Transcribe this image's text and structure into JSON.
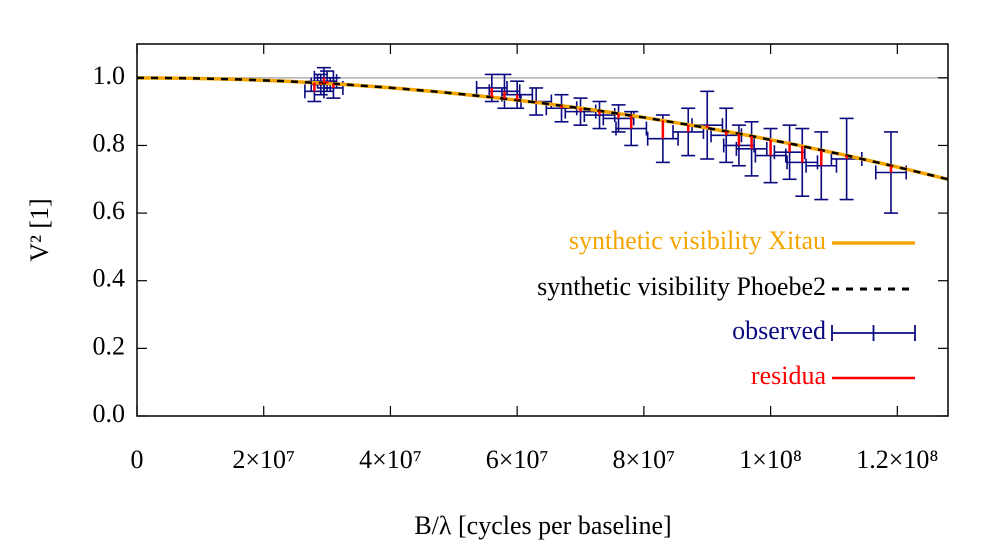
{
  "chart_data": {
    "type": "scatter",
    "xlabel": "B/λ [cycles per baseline]",
    "ylabel": "V² [1]",
    "xlim": [
      0,
      128000000
    ],
    "ylim": [
      0,
      1.1
    ],
    "xticks": [
      0,
      {
        "value": 20000000,
        "label": "2×10⁷"
      },
      {
        "value": 40000000,
        "label": "4×10⁷"
      },
      {
        "value": 60000000,
        "label": "6×10⁷"
      },
      {
        "value": 80000000,
        "label": "8×10⁷"
      },
      {
        "value": 100000000,
        "label": "1×10⁸"
      },
      {
        "value": 120000000,
        "label": "1.2×10⁸"
      }
    ],
    "yticks": [
      {
        "value": 0,
        "label": "0.0"
      },
      0.2,
      0.4,
      0.6,
      0.8,
      {
        "value": 1,
        "label": "1.0"
      }
    ],
    "hline": 1,
    "series": [
      {
        "name": "synthetic visibility Xitau",
        "type": "line",
        "color": "#f5a500",
        "dash": false,
        "x": [
          0,
          8000000,
          16000000,
          24000000,
          32000000,
          40000000,
          48000000,
          56000000,
          64000000,
          72000000,
          80000000,
          88000000,
          96000000,
          104000000,
          112000000,
          120000000,
          128000000
        ],
        "values": [
          1,
          0.9988,
          0.9953,
          0.9895,
          0.9813,
          0.9707,
          0.9578,
          0.9426,
          0.925,
          0.9051,
          0.8828,
          0.8582,
          0.8313,
          0.802,
          0.7703,
          0.7363,
          0.7
        ]
      },
      {
        "name": "synthetic visibility Phoebe2",
        "type": "line",
        "color": "#000000",
        "dash": true,
        "x": [
          0,
          8000000,
          16000000,
          24000000,
          32000000,
          40000000,
          48000000,
          56000000,
          64000000,
          72000000,
          80000000,
          88000000,
          96000000,
          104000000,
          112000000,
          120000000,
          128000000
        ],
        "values": [
          1,
          0.9988,
          0.9953,
          0.9895,
          0.9813,
          0.9707,
          0.9578,
          0.9426,
          0.925,
          0.9051,
          0.8828,
          0.8582,
          0.8313,
          0.802,
          0.7703,
          0.7363,
          0.7
        ]
      },
      {
        "name": "observed",
        "type": "errorbar",
        "color": "#0a0a80",
        "x": [
          28000000,
          29000000,
          29500000,
          30000000,
          31000000,
          56000000,
          58000000,
          60000000,
          63000000,
          67000000,
          70000000,
          73000000,
          76000000,
          78000000,
          83000000,
          87000000,
          90000000,
          93000000,
          95000000,
          97000000,
          100000000,
          103000000,
          105000000,
          108000000,
          112000000,
          119000000
        ],
        "values": [
          0.96,
          0.98,
          1.0,
          0.99,
          0.97,
          0.97,
          0.96,
          0.95,
          0.93,
          0.91,
          0.9,
          0.89,
          0.88,
          0.85,
          0.82,
          0.84,
          0.86,
          0.83,
          0.8,
          0.79,
          0.77,
          0.78,
          0.75,
          0.74,
          0.76,
          0.72
        ],
        "x_errors": [
          1500000,
          1500000,
          1500000,
          1500000,
          1500000,
          2400000,
          2400000,
          2400000,
          2400000,
          2400000,
          2400000,
          2400000,
          2400000,
          2400000,
          2400000,
          2400000,
          2400000,
          2400000,
          2400000,
          2400000,
          2400000,
          2400000,
          2400000,
          2400000,
          2400000,
          2400000
        ],
        "y_errors": [
          0.03,
          0.03,
          0.03,
          0.03,
          0.03,
          0.04,
          0.05,
          0.04,
          0.04,
          0.04,
          0.04,
          0.04,
          0.04,
          0.05,
          0.07,
          0.07,
          0.1,
          0.08,
          0.06,
          0.08,
          0.08,
          0.08,
          0.1,
          0.1,
          0.12,
          0.12
        ]
      },
      {
        "name": "residua",
        "type": "residual",
        "color": "#ff0000",
        "x": [
          28000000,
          29000000,
          29500000,
          30000000,
          31000000,
          56000000,
          58000000,
          60000000,
          63000000,
          67000000,
          70000000,
          73000000,
          76000000,
          78000000,
          83000000,
          87000000,
          90000000,
          93000000,
          95000000,
          97000000,
          100000000,
          103000000,
          105000000,
          108000000,
          112000000,
          119000000
        ],
        "observed": [
          0.96,
          0.98,
          1.0,
          0.99,
          0.97,
          0.97,
          0.96,
          0.95,
          0.93,
          0.91,
          0.9,
          0.89,
          0.88,
          0.85,
          0.82,
          0.84,
          0.86,
          0.83,
          0.8,
          0.79,
          0.77,
          0.78,
          0.75,
          0.74,
          0.76,
          0.72
        ],
        "values": [
          -0.026,
          -0.005,
          0.016,
          0.007,
          -0.012,
          0.027,
          0.022,
          0.016,
          0.003,
          -0.008,
          -0.01,
          -0.012,
          -0.014,
          -0.039,
          -0.054,
          -0.021,
          0.008,
          -0.012,
          -0.035,
          -0.038,
          -0.047,
          -0.026,
          -0.048,
          -0.046,
          -0.01,
          -0.021
        ]
      }
    ]
  }
}
